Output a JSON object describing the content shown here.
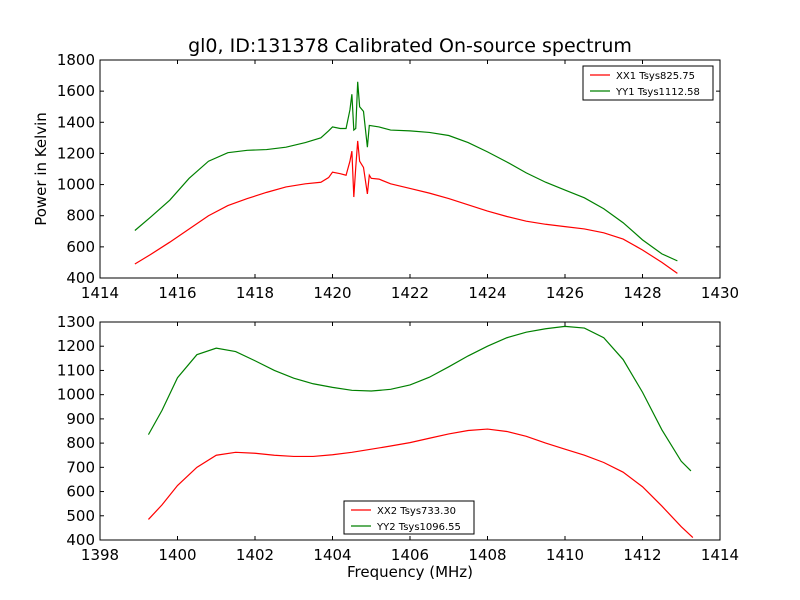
{
  "chart_data": [
    {
      "type": "line",
      "title": "gl0, ID:131378 Calibrated On-source spectrum",
      "xlabel": "",
      "ylabel": "Power in Kelvin",
      "xlim": [
        1414,
        1430
      ],
      "ylim": [
        400,
        1800
      ],
      "xticks": [
        "1414",
        "1416",
        "1418",
        "1420",
        "1422",
        "1424",
        "1426",
        "1428",
        "1430"
      ],
      "yticks": [
        "400",
        "600",
        "800",
        "1000",
        "1200",
        "1400",
        "1600",
        "1800"
      ],
      "legend_position": "top-right",
      "series": [
        {
          "name": "XX1 Tsys825.75",
          "color": "#ff0000",
          "points": [
            [
              1414.9,
              490
            ],
            [
              1415.3,
              550
            ],
            [
              1415.8,
              630
            ],
            [
              1416.3,
              715
            ],
            [
              1416.8,
              800
            ],
            [
              1417.3,
              865
            ],
            [
              1417.8,
              910
            ],
            [
              1418.3,
              950
            ],
            [
              1418.8,
              985
            ],
            [
              1419.3,
              1005
            ],
            [
              1419.7,
              1015
            ],
            [
              1419.9,
              1045
            ],
            [
              1420.0,
              1080
            ],
            [
              1420.2,
              1070
            ],
            [
              1420.35,
              1060
            ],
            [
              1420.45,
              1150
            ],
            [
              1420.5,
              1215
            ],
            [
              1420.55,
              920
            ],
            [
              1420.6,
              1110
            ],
            [
              1420.65,
              1280
            ],
            [
              1420.7,
              1150
            ],
            [
              1420.8,
              1110
            ],
            [
              1420.9,
              940
            ],
            [
              1420.95,
              1060
            ],
            [
              1421.0,
              1040
            ],
            [
              1421.2,
              1035
            ],
            [
              1421.5,
              1005
            ],
            [
              1422.0,
              975
            ],
            [
              1422.5,
              945
            ],
            [
              1423.0,
              910
            ],
            [
              1423.5,
              870
            ],
            [
              1424.0,
              830
            ],
            [
              1424.5,
              795
            ],
            [
              1425.0,
              765
            ],
            [
              1425.5,
              745
            ],
            [
              1426.0,
              730
            ],
            [
              1426.5,
              715
            ],
            [
              1427.0,
              690
            ],
            [
              1427.5,
              650
            ],
            [
              1428.0,
              580
            ],
            [
              1428.5,
              500
            ],
            [
              1428.9,
              430
            ]
          ]
        },
        {
          "name": "YY1 Tsys1112.58",
          "color": "#008000",
          "points": [
            [
              1414.9,
              705
            ],
            [
              1415.3,
              790
            ],
            [
              1415.8,
              900
            ],
            [
              1416.3,
              1040
            ],
            [
              1416.8,
              1150
            ],
            [
              1417.3,
              1205
            ],
            [
              1417.8,
              1220
            ],
            [
              1418.3,
              1225
            ],
            [
              1418.8,
              1240
            ],
            [
              1419.3,
              1270
            ],
            [
              1419.7,
              1300
            ],
            [
              1419.9,
              1345
            ],
            [
              1420.0,
              1370
            ],
            [
              1420.2,
              1360
            ],
            [
              1420.35,
              1360
            ],
            [
              1420.45,
              1480
            ],
            [
              1420.5,
              1580
            ],
            [
              1420.55,
              1350
            ],
            [
              1420.6,
              1360
            ],
            [
              1420.65,
              1660
            ],
            [
              1420.7,
              1500
            ],
            [
              1420.8,
              1470
            ],
            [
              1420.9,
              1240
            ],
            [
              1420.95,
              1380
            ],
            [
              1421.2,
              1370
            ],
            [
              1421.5,
              1350
            ],
            [
              1422.0,
              1345
            ],
            [
              1422.5,
              1335
            ],
            [
              1423.0,
              1315
            ],
            [
              1423.5,
              1270
            ],
            [
              1424.0,
              1210
            ],
            [
              1424.5,
              1145
            ],
            [
              1425.0,
              1075
            ],
            [
              1425.5,
              1015
            ],
            [
              1426.0,
              965
            ],
            [
              1426.5,
              915
            ],
            [
              1427.0,
              845
            ],
            [
              1427.5,
              755
            ],
            [
              1428.0,
              645
            ],
            [
              1428.5,
              555
            ],
            [
              1428.9,
              510
            ]
          ]
        }
      ]
    },
    {
      "type": "line",
      "title": "",
      "xlabel": "Frequency (MHz)",
      "ylabel": "",
      "xlim": [
        1398,
        1414
      ],
      "ylim": [
        400,
        1300
      ],
      "xticks": [
        "1398",
        "1400",
        "1402",
        "1404",
        "1406",
        "1408",
        "1410",
        "1412",
        "1414"
      ],
      "yticks": [
        "400",
        "500",
        "600",
        "700",
        "800",
        "900",
        "1000",
        "1100",
        "1200",
        "1300"
      ],
      "legend_position": "bottom-center",
      "series": [
        {
          "name": "XX2 Tsys733.30",
          "color": "#ff0000",
          "points": [
            [
              1399.25,
              485
            ],
            [
              1399.6,
              545
            ],
            [
              1400.0,
              625
            ],
            [
              1400.5,
              700
            ],
            [
              1401.0,
              750
            ],
            [
              1401.5,
              762
            ],
            [
              1402.0,
              758
            ],
            [
              1402.5,
              750
            ],
            [
              1403.0,
              745
            ],
            [
              1403.5,
              745
            ],
            [
              1404.0,
              752
            ],
            [
              1404.5,
              762
            ],
            [
              1405.0,
              775
            ],
            [
              1405.5,
              788
            ],
            [
              1406.0,
              802
            ],
            [
              1406.5,
              820
            ],
            [
              1407.0,
              838
            ],
            [
              1407.5,
              852
            ],
            [
              1408.0,
              858
            ],
            [
              1408.5,
              848
            ],
            [
              1409.0,
              828
            ],
            [
              1409.5,
              800
            ],
            [
              1410.0,
              775
            ],
            [
              1410.5,
              750
            ],
            [
              1411.0,
              720
            ],
            [
              1411.5,
              680
            ],
            [
              1412.0,
              620
            ],
            [
              1412.5,
              540
            ],
            [
              1413.0,
              455
            ],
            [
              1413.3,
              410
            ]
          ]
        },
        {
          "name": "YY2 Tsys1096.55",
          "color": "#008000",
          "points": [
            [
              1399.25,
              835
            ],
            [
              1399.6,
              935
            ],
            [
              1400.0,
              1070
            ],
            [
              1400.5,
              1165
            ],
            [
              1401.0,
              1192
            ],
            [
              1401.5,
              1178
            ],
            [
              1402.0,
              1140
            ],
            [
              1402.5,
              1100
            ],
            [
              1403.0,
              1068
            ],
            [
              1403.5,
              1045
            ],
            [
              1404.0,
              1030
            ],
            [
              1404.5,
              1018
            ],
            [
              1405.0,
              1015
            ],
            [
              1405.5,
              1022
            ],
            [
              1406.0,
              1040
            ],
            [
              1406.5,
              1072
            ],
            [
              1407.0,
              1115
            ],
            [
              1407.5,
              1160
            ],
            [
              1408.0,
              1200
            ],
            [
              1408.5,
              1235
            ],
            [
              1409.0,
              1258
            ],
            [
              1409.5,
              1272
            ],
            [
              1410.0,
              1282
            ],
            [
              1410.5,
              1275
            ],
            [
              1411.0,
              1235
            ],
            [
              1411.5,
              1145
            ],
            [
              1412.0,
              1010
            ],
            [
              1412.5,
              855
            ],
            [
              1413.0,
              725
            ],
            [
              1413.25,
              685
            ]
          ]
        }
      ]
    }
  ]
}
